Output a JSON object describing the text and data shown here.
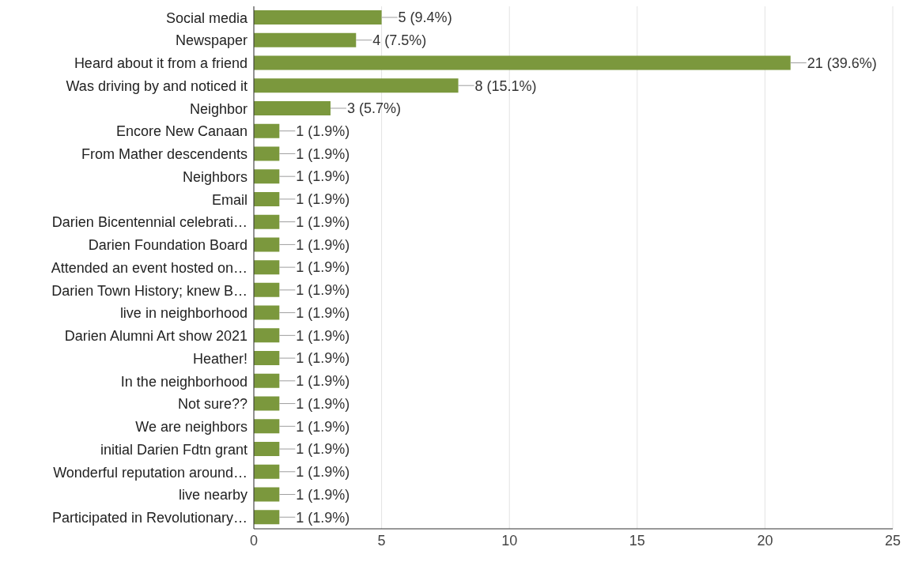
{
  "chart_data": {
    "type": "bar",
    "orientation": "horizontal",
    "categories": [
      "Social media",
      "Newspaper",
      "Heard about it from a friend",
      "Was driving by and noticed it",
      "Neighbor",
      "Encore New Canaan",
      "From Mather descendents",
      "Neighbors",
      "Email",
      "Darien Bicentennial celebrati…",
      "Darien Foundation Board",
      "Attended an event hosted on…",
      "Darien Town History; knew B…",
      "live in neighborhood",
      "Darien Alumni Art show 2021",
      "Heather!",
      "In the neighborhood",
      "Not sure??",
      "We are neighbors",
      "initial Darien Fdtn grant",
      "Wonderful reputation around…",
      "live nearby",
      "Participated in Revolutionary…"
    ],
    "values": [
      5,
      4,
      21,
      8,
      3,
      1,
      1,
      1,
      1,
      1,
      1,
      1,
      1,
      1,
      1,
      1,
      1,
      1,
      1,
      1,
      1,
      1,
      1
    ],
    "value_labels": [
      "5 (9.4%)",
      "4 (7.5%)",
      "21 (39.6%)",
      "8 (15.1%)",
      "3 (5.7%)",
      "1 (1.9%)",
      "1 (1.9%)",
      "1 (1.9%)",
      "1 (1.9%)",
      "1 (1.9%)",
      "1 (1.9%)",
      "1 (1.9%)",
      "1 (1.9%)",
      "1 (1.9%)",
      "1 (1.9%)",
      "1 (1.9%)",
      "1 (1.9%)",
      "1 (1.9%)",
      "1 (1.9%)",
      "1 (1.9%)",
      "1 (1.9%)",
      "1 (1.9%)",
      "1 (1.9%)"
    ],
    "color": "#7b983d",
    "xlim": [
      0,
      25
    ],
    "xticks": [
      0,
      5,
      10,
      15,
      20,
      25
    ],
    "grid": "x"
  }
}
